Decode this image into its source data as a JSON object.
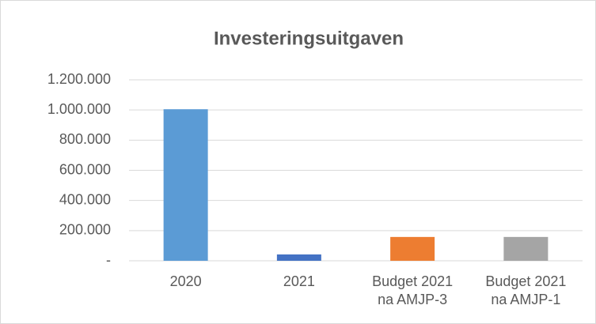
{
  "chart_data": {
    "type": "bar",
    "title": "Investeringsuitgaven",
    "categories": [
      [
        "2020"
      ],
      [
        "2021"
      ],
      [
        "Budget 2021",
        "na AMJP-3"
      ],
      [
        "Budget 2021",
        "na AMJP-1"
      ]
    ],
    "values": [
      1005000,
      42000,
      158000,
      158000
    ],
    "colors": [
      "#5b9bd5",
      "#4472c4",
      "#ed7d31",
      "#a5a5a5"
    ],
    "ylim": [
      0,
      1200000
    ],
    "yticks": [
      {
        "value": 0,
        "label": "-"
      },
      {
        "value": 200000,
        "label": "200.000"
      },
      {
        "value": 400000,
        "label": "400.000"
      },
      {
        "value": 600000,
        "label": "600.000"
      },
      {
        "value": 800000,
        "label": "800.000"
      },
      {
        "value": 1000000,
        "label": "1.000.000"
      },
      {
        "value": 1200000,
        "label": "1.200.000"
      }
    ],
    "grid": true
  }
}
